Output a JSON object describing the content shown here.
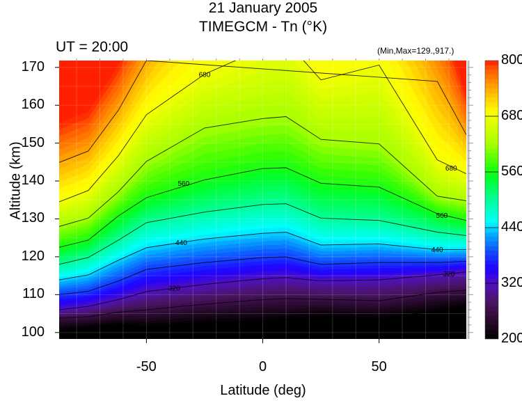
{
  "chart_data": {
    "type": "heatmap",
    "subtype": "filled-contour",
    "title": "21 January 2005",
    "subtitle": "TIMEGCM - Tn (°K)",
    "annotation_left": "UT = 20:00",
    "annotation_right": "(Min,Max=129.,917.)",
    "xlabel": "Latitude (deg)",
    "ylabel": "Altitude (km)",
    "xlim": [
      -87.5,
      87.5
    ],
    "ylim": [
      98.3,
      171.8
    ],
    "x_ticks": [
      "-50",
      "0",
      "50"
    ],
    "x_tick_values": [
      -50,
      0,
      50
    ],
    "y_ticks": [
      "100",
      "110",
      "120",
      "130",
      "140",
      "150",
      "160",
      "170"
    ],
    "y_tick_values": [
      100,
      110,
      120,
      130,
      140,
      150,
      160,
      170
    ],
    "colorbar": {
      "range": [
        200,
        800
      ],
      "tick_labels": [
        "800",
        "680",
        "560",
        "440",
        "320",
        "200"
      ],
      "tick_values": [
        800,
        680,
        560,
        440,
        320,
        200
      ]
    },
    "colormap": [
      [
        200,
        "#000000"
      ],
      [
        240,
        "#2a0a2e"
      ],
      [
        280,
        "#4a1464"
      ],
      [
        320,
        "#5010c0"
      ],
      [
        350,
        "#2000ff"
      ],
      [
        390,
        "#1050ff"
      ],
      [
        430,
        "#00b8ff"
      ],
      [
        450,
        "#00ffff"
      ],
      [
        500,
        "#00ff9a"
      ],
      [
        550,
        "#00ff20"
      ],
      [
        580,
        "#40ff00"
      ],
      [
        620,
        "#a8ff00"
      ],
      [
        660,
        "#d8ff00"
      ],
      [
        690,
        "#ffff00"
      ],
      [
        740,
        "#ffa800"
      ],
      [
        780,
        "#ff5a00"
      ],
      [
        800,
        "#ff2000"
      ]
    ],
    "contour_latitudes": [
      -87.5,
      -75,
      -62,
      -50,
      -25,
      0,
      10,
      25,
      50,
      75,
      87.5
    ],
    "contours": [
      {
        "level": 200,
        "altitudes": [
          100.5,
          101.4,
          102,
          101.4,
          102.6,
          103,
          103.5,
          104.4,
          103.8,
          105.7,
          107
        ]
      },
      {
        "level": 260,
        "altitudes": [
          103.8,
          104.2,
          105.4,
          106,
          107.5,
          108.7,
          109,
          108.8,
          108.4,
          110.6,
          111.2
        ]
      },
      {
        "level": 320,
        "altitudes": [
          106,
          106.9,
          108.7,
          110.8,
          112.7,
          114.2,
          114.5,
          113.6,
          113.9,
          115.2,
          116
        ]
      },
      {
        "level": 380,
        "altitudes": [
          110,
          110.9,
          113.6,
          116.7,
          118.5,
          119.8,
          120,
          118,
          118.5,
          118.5,
          118.8
        ]
      },
      {
        "level": 440,
        "altitudes": [
          113.9,
          115.2,
          119.1,
          122.4,
          124.7,
          126.2,
          126.5,
          123.1,
          123.4,
          121.9,
          121.9
        ]
      },
      {
        "level": 500,
        "altitudes": [
          118,
          119.8,
          124.4,
          129,
          131.8,
          133.8,
          134,
          130.2,
          129.6,
          126.5,
          125.6
        ]
      },
      {
        "level": 560,
        "altitudes": [
          122.5,
          124.4,
          130.8,
          135.6,
          140.3,
          143.3,
          143.5,
          139.4,
          138.4,
          131.4,
          129.6
        ]
      },
      {
        "level": 620,
        "altitudes": [
          128,
          130.2,
          137.2,
          145.2,
          154,
          156.5,
          157,
          151,
          149.8,
          136,
          134.8
        ]
      },
      {
        "level": 680,
        "altitudes": [
          134.5,
          137.5,
          146.7,
          157.5,
          168.2,
          175,
          177,
          166.7,
          170.6,
          145.6,
          141.9
        ]
      },
      {
        "level": 740,
        "altitudes": [
          144.9,
          147.9,
          158.7,
          171.8,
          null,
          null,
          null,
          null,
          null,
          166.3,
          152.2
        ]
      }
    ],
    "contour_labels": [
      {
        "text": "680",
        "lat": -25,
        "alt": 168.2
      },
      {
        "text": "560",
        "lat": -34,
        "alt": 139.5
      },
      {
        "text": "440",
        "lat": -35,
        "alt": 123.8
      },
      {
        "text": "320",
        "lat": -38,
        "alt": 111.8
      },
      {
        "text": "680",
        "lat": 81,
        "alt": 143.5
      },
      {
        "text": "560",
        "lat": 77,
        "alt": 131
      },
      {
        "text": "440",
        "lat": 75,
        "alt": 122
      },
      {
        "text": "320",
        "lat": 80,
        "alt": 115.6
      }
    ]
  }
}
